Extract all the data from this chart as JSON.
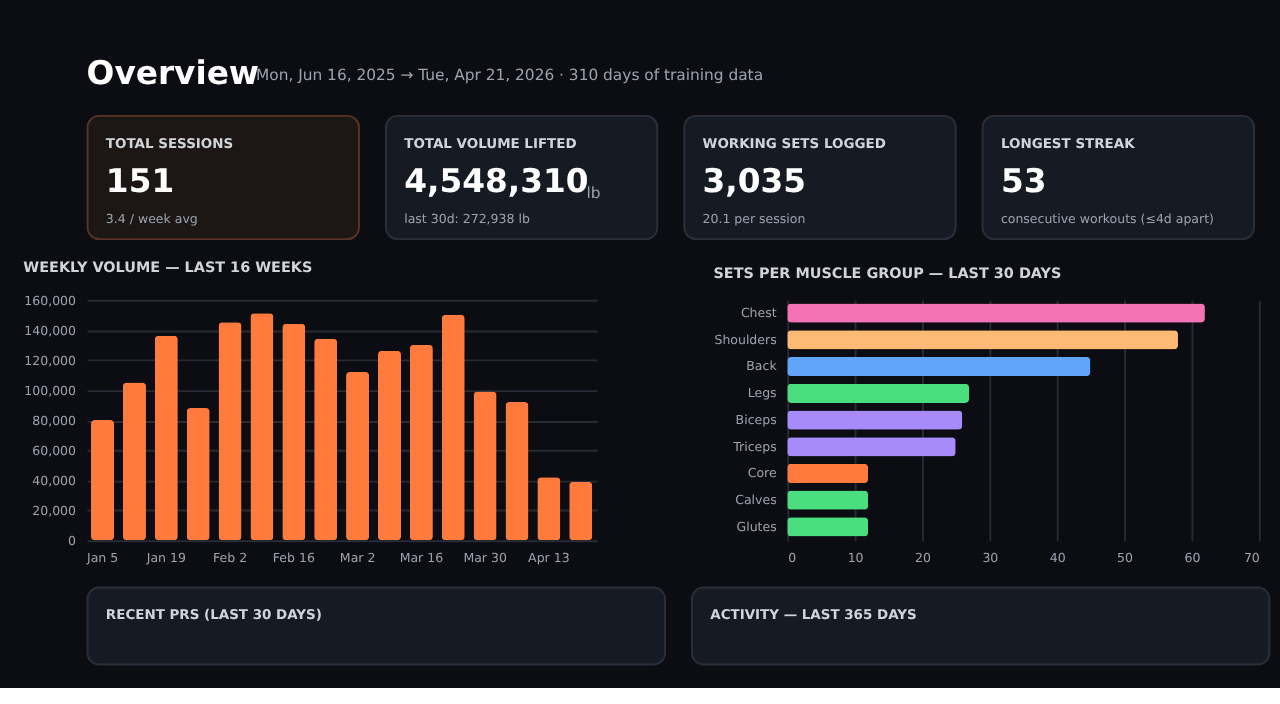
{
  "chart_data": [
    {
      "type": "other",
      "title": "Overview",
      "subtitle": "Mon, Jun 16, 2025 → Tue, Apr 21, 2026 · 310 days of training data"
    },
    {
      "type": "other",
      "title": "TOTAL SESSIONS",
      "annotations": [
        "151",
        "3.4 / week avg"
      ]
    },
    {
      "type": "other",
      "title": "TOTAL VOLUME LIFTED",
      "annotations": [
        "4,548,310",
        "lb",
        "last 30d: 272,938 lb"
      ]
    },
    {
      "type": "other",
      "title": "WORKING SETS LOGGED",
      "annotations": [
        "3,035",
        "20.1 per session"
      ]
    },
    {
      "type": "other",
      "title": "LONGEST STREAK",
      "annotations": [
        "53",
        "consecutive workouts (≤4d apart)"
      ]
    },
    {
      "type": "bar",
      "title": "WEEKLY VOLUME — LAST 16 WEEKS",
      "categories": [
        "Jan 5",
        null,
        "Jan 19",
        null,
        "Feb 2",
        null,
        "Feb 16",
        null,
        "Mar 2",
        null,
        "Mar 16",
        null,
        "Mar 30",
        null,
        "Apr 13",
        null
      ],
      "values": [
        80000,
        105000,
        136000,
        88000,
        145000,
        151000,
        144000,
        134000,
        112000,
        126000,
        130000,
        150000,
        99000,
        92000,
        42000,
        39000
      ],
      "color": "#ff7a3d",
      "ylim": [
        0,
        160000
      ],
      "yticks": [
        0,
        {
          "value": 20000,
          "label": "20,000"
        },
        {
          "value": 40000,
          "label": "40,000"
        },
        {
          "value": 60000,
          "label": "60,000"
        },
        {
          "value": 80000,
          "label": "80,000"
        },
        {
          "value": 100000,
          "label": "100,000"
        },
        {
          "value": 120000,
          "label": "120,000"
        },
        {
          "value": 140000,
          "label": "140,000"
        },
        {
          "value": 160000,
          "label": "160,000"
        }
      ],
      "grid": true
    },
    {
      "type": "bar",
      "orientation": "horizontal",
      "title": "SETS PER MUSCLE GROUP — LAST 30 DAYS",
      "categories": [
        "Chest",
        "Shoulders",
        "Back",
        "Legs",
        "Biceps",
        "Triceps",
        "Core",
        "Calves",
        "Glutes"
      ],
      "values": [
        62,
        58,
        45,
        27,
        26,
        25,
        12,
        12,
        12
      ],
      "colors": [
        "#f472b6",
        "#fdba74",
        "#60a5fa",
        "#4ade80",
        "#a78bfa",
        "#a78bfa",
        "#ff7a3d",
        "#4ade80",
        "#4ade80"
      ],
      "xlim": [
        0,
        70
      ],
      "xticks": [
        0,
        10,
        20,
        30,
        40,
        50,
        60,
        70
      ],
      "grid": true
    },
    {
      "type": "other",
      "title": "RECENT PRS (LAST 30 DAYS)"
    },
    {
      "type": "other",
      "title": "ACTIVITY — LAST 365 DAYS"
    }
  ]
}
